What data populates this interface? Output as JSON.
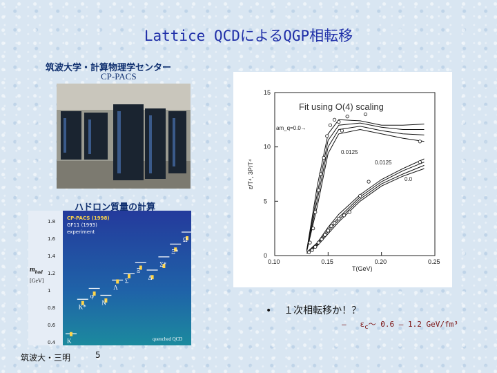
{
  "slide": {
    "title": "Lattice QCDによるQGP相転移",
    "institution": "筑波大学・計算物理学センター",
    "machine": "CP-PACS",
    "hadron_title": "ハドロン質量の計算",
    "bullet": "１次相転移か！？",
    "sub_bullet_prefix": "–",
    "sub_bullet_eps": "ε",
    "sub_bullet_eps_sub": "c",
    "sub_bullet_value": "〜 0.6 – 1.2 GeV/fm³",
    "footer_author": "筑波大・三明",
    "page_number": "5"
  },
  "hadron_chart": {
    "ylabel": "m",
    "ylabel_sub": "had",
    "yunit": "[GeV]",
    "yticks": [
      "1.8",
      "1.6",
      "1.4",
      "1.2",
      "1",
      "0.8",
      "0.6",
      "0.4"
    ],
    "ylim": [
      0.4,
      1.8
    ],
    "legend": [
      "CP-PACS (1998)",
      "GF11 (1993)",
      "experiment"
    ],
    "footer": "quenched QCD",
    "particles": [
      {
        "name": "K",
        "exp": 0.495,
        "cp": 0.49
      },
      {
        "name": "K*",
        "exp": 0.894,
        "cp": 0.85
      },
      {
        "name": "φ",
        "exp": 1.02,
        "cp": 0.96
      },
      {
        "name": "N",
        "exp": 0.94,
        "cp": 0.88
      },
      {
        "name": "Λ",
        "exp": 1.116,
        "cp": 1.1
      },
      {
        "name": "Σ",
        "exp": 1.193,
        "cp": 1.16
      },
      {
        "name": "Ξ",
        "exp": 1.318,
        "cp": 1.26
      },
      {
        "name": "Δ",
        "exp": 1.232,
        "cp": 1.15
      },
      {
        "name": "Σ*",
        "exp": 1.385,
        "cp": 1.28
      },
      {
        "name": "Ξ*",
        "exp": 1.533,
        "cp": 1.47
      },
      {
        "name": "Ω",
        "exp": 1.672,
        "cp": 1.6
      }
    ]
  },
  "chart_data": {
    "type": "line",
    "title": "Fit using O(4) scaling",
    "xlabel": "T(GeV)",
    "ylabel": "ε/T⁴, 3P/T⁴",
    "xlim": [
      0.1,
      0.25
    ],
    "ylim": [
      0,
      15
    ],
    "xticks": [
      "0.10",
      "0.15",
      "0.20",
      "0.25"
    ],
    "yticks": [
      "0",
      "5",
      "10",
      "15"
    ],
    "annotations": [
      "am_q=0.0→",
      "0.0125",
      "0.0125",
      "0.0"
    ],
    "series": [
      {
        "x": [
          0.13,
          0.14,
          0.15,
          0.16,
          0.18,
          0.2,
          0.22,
          0.24
        ],
        "y": [
          0.5,
          6.5,
          11.2,
          12.5,
          12.4,
          12.0,
          12.0,
          12.1
        ]
      },
      {
        "x": [
          0.13,
          0.14,
          0.15,
          0.16,
          0.18,
          0.2,
          0.22,
          0.24
        ],
        "y": [
          0.5,
          5.8,
          10.6,
          12.0,
          12.2,
          11.8,
          11.6,
          11.6
        ]
      },
      {
        "x": [
          0.13,
          0.14,
          0.15,
          0.16,
          0.18,
          0.2,
          0.22,
          0.24
        ],
        "y": [
          0.4,
          5.2,
          10.0,
          11.6,
          11.9,
          11.5,
          11.2,
          11.1
        ]
      },
      {
        "x": [
          0.13,
          0.14,
          0.15,
          0.16,
          0.18,
          0.2,
          0.22,
          0.24
        ],
        "y": [
          0.4,
          4.6,
          9.4,
          11.2,
          11.6,
          11.2,
          10.8,
          10.5
        ]
      },
      {
        "x": [
          0.13,
          0.14,
          0.15,
          0.16,
          0.18,
          0.2,
          0.22,
          0.24
        ],
        "y": [
          0.3,
          1.2,
          2.6,
          3.8,
          5.6,
          7.0,
          8.0,
          8.9
        ]
      },
      {
        "x": [
          0.13,
          0.14,
          0.15,
          0.16,
          0.18,
          0.2,
          0.22,
          0.24
        ],
        "y": [
          0.3,
          1.1,
          2.4,
          3.5,
          5.4,
          6.8,
          7.8,
          8.6
        ]
      },
      {
        "x": [
          0.13,
          0.14,
          0.15,
          0.16,
          0.18,
          0.2,
          0.22,
          0.24
        ],
        "y": [
          0.2,
          1.0,
          2.2,
          3.3,
          5.2,
          6.6,
          7.5,
          8.3
        ]
      },
      {
        "x": [
          0.13,
          0.14,
          0.15,
          0.16,
          0.18,
          0.2,
          0.22,
          0.24
        ],
        "y": [
          0.2,
          0.9,
          2.0,
          3.1,
          5.0,
          6.4,
          7.3,
          8.0
        ]
      }
    ],
    "points_upper": {
      "x": [
        0.133,
        0.136,
        0.138,
        0.141,
        0.143,
        0.146,
        0.149,
        0.152,
        0.156,
        0.16,
        0.163,
        0.168,
        0.185,
        0.236
      ],
      "y": [
        1.2,
        2.5,
        4.0,
        6.0,
        7.5,
        9.0,
        11.0,
        12.0,
        12.5,
        12.3,
        11.5,
        12.8,
        13.0,
        10.5
      ]
    },
    "points_lower": {
      "x": [
        0.132,
        0.135,
        0.138,
        0.141,
        0.144,
        0.147,
        0.15,
        0.153,
        0.156,
        0.16,
        0.165,
        0.17,
        0.18,
        0.188,
        0.236
      ],
      "y": [
        0.3,
        0.5,
        0.8,
        1.2,
        1.5,
        1.9,
        2.3,
        2.7,
        3.0,
        3.4,
        3.7,
        4.0,
        5.5,
        6.8,
        8.6
      ]
    }
  }
}
